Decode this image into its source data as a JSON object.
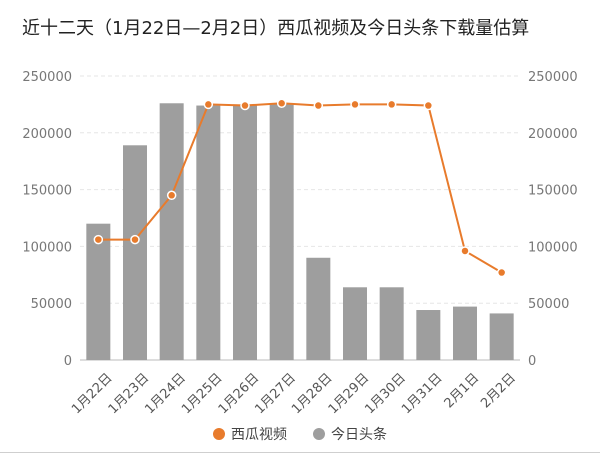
{
  "colors": {
    "line": "#E87B2C",
    "bar": "#9E9E9E",
    "grid": "#E6E6E6",
    "axis_text": "#777777"
  },
  "chart_data": {
    "type": "bar+line",
    "title": "近十二天（1月22日—2月2日）西瓜视频及今日头条下载量估算",
    "categories": [
      "1月22日",
      "1月23日",
      "1月24日",
      "1月25日",
      "1月26日",
      "1月27日",
      "1月28日",
      "1月29日",
      "1月30日",
      "1月31日",
      "2月1日",
      "2月2日"
    ],
    "series": [
      {
        "name": "西瓜视频",
        "type": "line",
        "axis": "right",
        "values": [
          106000,
          106000,
          145000,
          225000,
          224000,
          226000,
          224000,
          225000,
          225000,
          224000,
          96000,
          77000
        ]
      },
      {
        "name": "今日头条",
        "type": "bar",
        "axis": "left",
        "values": [
          120000,
          189000,
          226000,
          224000,
          225000,
          226000,
          90000,
          64000,
          64000,
          44000,
          47000,
          41000
        ]
      }
    ],
    "ylim": [
      0,
      250000
    ],
    "yticks": [
      "0",
      "50000",
      "100000",
      "150000",
      "200000",
      "250000"
    ],
    "grid": true,
    "legend": "bottom"
  }
}
